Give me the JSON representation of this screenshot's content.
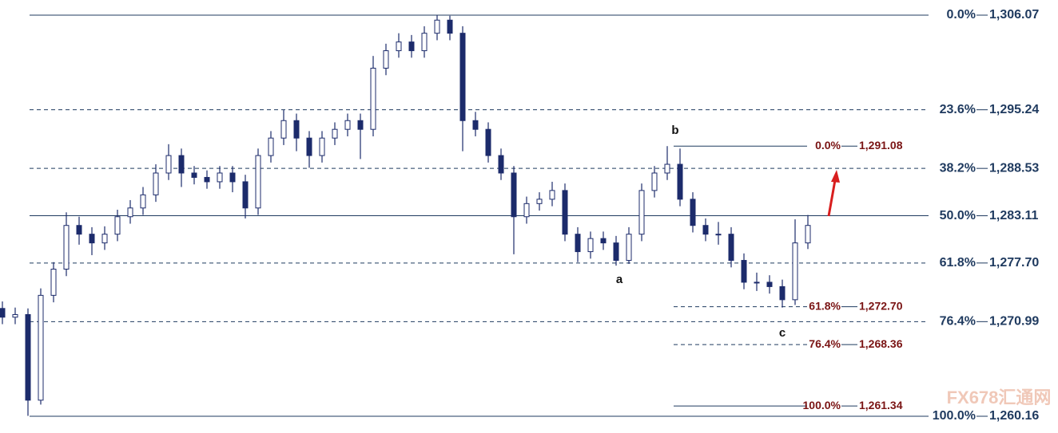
{
  "chart_data": {
    "type": "candlestick",
    "ylim": [
      1260.16,
      1306.07
    ],
    "color": "#1c2b6b",
    "level_color": "#1f3a5f",
    "extension_color": "#7a1414",
    "open": [
      1272.5,
      1271.5,
      1271.8,
      1262,
      1274,
      1277,
      1282,
      1281,
      1280,
      1281,
      1283,
      1284,
      1285.5,
      1288,
      1290,
      1288,
      1287.5,
      1287,
      1288,
      1287,
      1284,
      1290,
      1292,
      1294,
      1292,
      1290,
      1292,
      1293,
      1294,
      1293,
      1300,
      1302,
      1303,
      1302,
      1304,
      1305.5,
      1304,
      1294,
      1293,
      1290,
      1288,
      1283,
      1284.5,
      1285,
      1286,
      1281,
      1279,
      1280.5,
      1280,
      1278,
      1281,
      1286,
      1288,
      1289,
      1285,
      1282,
      1281,
      1281,
      1278,
      1275.5,
      1275.5,
      1275,
      1273.5,
      1280
    ],
    "high": [
      1273.3,
      1272.6,
      1272.5,
      1274.8,
      1277.8,
      1283.5,
      1283,
      1281.8,
      1281.9,
      1283.8,
      1284.9,
      1286.4,
      1289,
      1291.3,
      1290.8,
      1288.8,
      1288.3,
      1288.8,
      1288.8,
      1287.8,
      1290.8,
      1292.8,
      1295.2,
      1294.8,
      1292.8,
      1292.8,
      1293.8,
      1294.8,
      1294.8,
      1301.4,
      1302.8,
      1304,
      1303.8,
      1304.8,
      1306.07,
      1306,
      1304.8,
      1295,
      1293.8,
      1290.8,
      1288.8,
      1285.3,
      1285.8,
      1287,
      1286.8,
      1281.8,
      1281.3,
      1281.3,
      1280.8,
      1281.8,
      1286.8,
      1288.8,
      1291.08,
      1290.8,
      1285.8,
      1282.8,
      1282.4,
      1281.8,
      1278.8,
      1276.6,
      1276.3,
      1275.8,
      1282.7,
      1283.2
    ],
    "low": [
      1270.7,
      1270.7,
      1260.2,
      1261.5,
      1273.2,
      1276.2,
      1279.8,
      1278.6,
      1279.2,
      1280.2,
      1282.2,
      1283.2,
      1284.7,
      1287.2,
      1286.4,
      1286.7,
      1286.2,
      1286.2,
      1285.8,
      1282.8,
      1283.2,
      1289.2,
      1291.2,
      1290.5,
      1288.6,
      1289.2,
      1291.2,
      1292.2,
      1289.6,
      1292.2,
      1299.2,
      1301.2,
      1301.2,
      1301.2,
      1303.2,
      1303.2,
      1290.5,
      1292.2,
      1289.2,
      1287.2,
      1278.7,
      1282.2,
      1283.7,
      1284.2,
      1280.2,
      1277.8,
      1278.2,
      1279.2,
      1277.4,
      1277.6,
      1280.2,
      1285.2,
      1287.2,
      1284.2,
      1281.2,
      1280.2,
      1279.8,
      1277.2,
      1274.7,
      1274.5,
      1274.2,
      1272.6,
      1272.9,
      1279.3
    ],
    "close": [
      1271.5,
      1271.8,
      1262,
      1274,
      1277,
      1282,
      1281,
      1280,
      1281,
      1283,
      1284,
      1285.5,
      1288,
      1290,
      1288,
      1287.5,
      1287,
      1288,
      1287,
      1284,
      1290,
      1292,
      1294,
      1292,
      1290,
      1292,
      1293,
      1294,
      1293,
      1300,
      1302,
      1303,
      1302,
      1304,
      1305.5,
      1304,
      1294,
      1293,
      1290,
      1288,
      1283,
      1284.5,
      1285,
      1286,
      1281,
      1279,
      1280.5,
      1280,
      1278,
      1281,
      1286,
      1288,
      1289,
      1285,
      1282,
      1281,
      1281,
      1278,
      1275.5,
      1275.5,
      1275,
      1273.5,
      1280,
      1282
    ],
    "levels": [
      {
        "percent": "0.0%",
        "price": {
          "value": 1306.07,
          "label": "1,306.07"
        },
        "dashed": false
      },
      {
        "percent": "23.6%",
        "price": {
          "value": 1295.24,
          "label": "1,295.24"
        },
        "dashed": true
      },
      {
        "percent": "38.2%",
        "price": {
          "value": 1288.53,
          "label": "1,288.53"
        },
        "dashed": true
      },
      {
        "percent": "50.0%",
        "price": {
          "value": 1283.11,
          "label": "1,283.11"
        },
        "dashed": false
      },
      {
        "percent": "61.8%",
        "price": {
          "value": 1277.7,
          "label": "1,277.70"
        },
        "dashed": true
      },
      {
        "percent": "76.4%",
        "price": {
          "value": 1270.99,
          "label": "1,270.99"
        },
        "dashed": true
      },
      {
        "percent": "100.0%",
        "price": {
          "value": 1260.16,
          "label": "1,260.16"
        },
        "dashed": false
      }
    ],
    "extensions": [
      {
        "percent": "0.0%",
        "price": {
          "value": 1291.08,
          "label": "1,291.08"
        },
        "dashed": false
      },
      {
        "percent": "61.8%",
        "price": {
          "value": 1272.7,
          "label": "1,272.70"
        },
        "dashed": true
      },
      {
        "percent": "76.4%",
        "price": {
          "value": 1268.36,
          "label": "1,268.36"
        },
        "dashed": true
      },
      {
        "percent": "100.0%",
        "price": {
          "value": 1261.34,
          "label": "1,261.34"
        },
        "dashed": false
      }
    ],
    "annotations": [
      "a",
      "b",
      "c"
    ],
    "watermark": "FX678汇通网"
  }
}
